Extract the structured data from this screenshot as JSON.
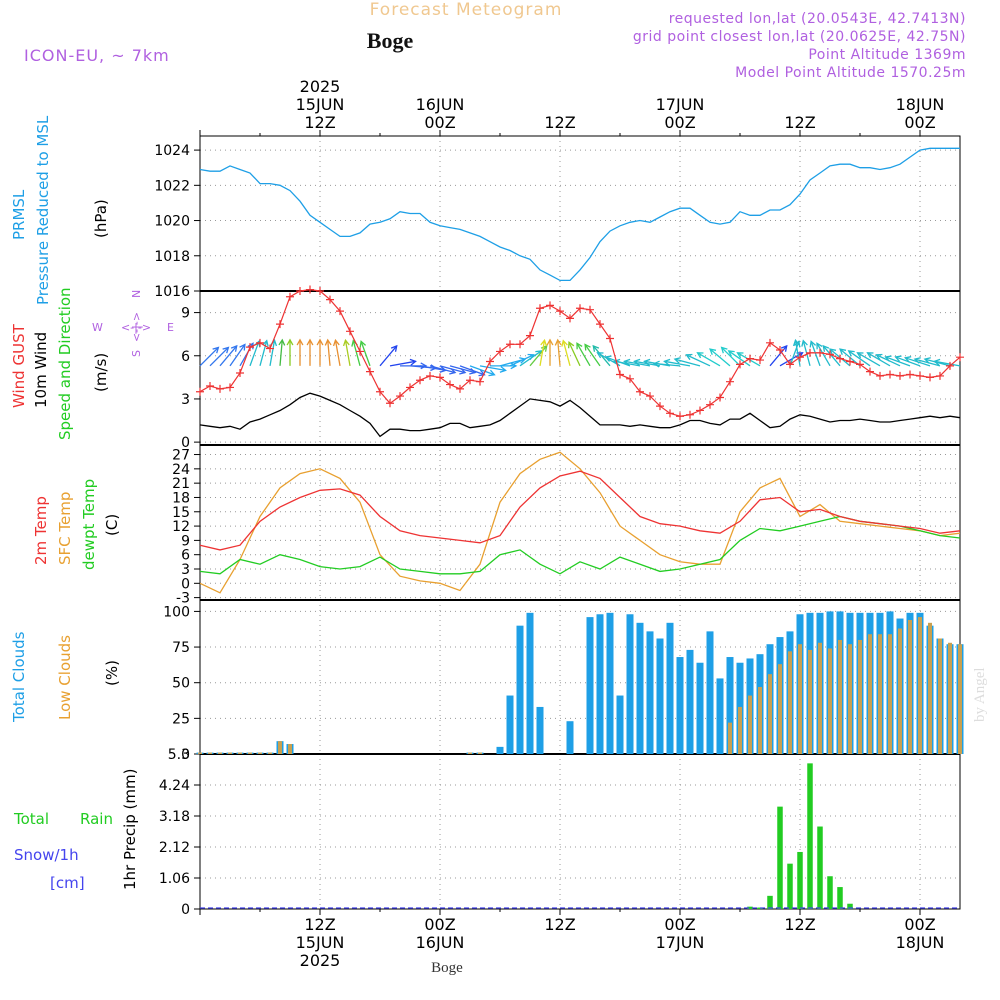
{
  "header": {
    "title": "Forecast Meteogram",
    "location": "Boge",
    "model": "ICON-EU, ~ 7km",
    "requested": "requested lon,lat (20.0543E, 42.7413N)",
    "gridpoint": "grid point closest lon,lat (20.0625E, 42.75N)",
    "altitude": "Point Altitude 1369m",
    "model_altitude": "Model Point Altitude 1570.25m",
    "watermark": "by Angel",
    "footer_location": "Boge"
  },
  "colors": {
    "pressure": "#1e9fe6",
    "gust": "#ee3333",
    "wind": "#000000",
    "temp": "#ee3333",
    "sfc": "#e8a030",
    "dewpt": "#22cc22",
    "total": "#1e9fe6",
    "low": "#c8a050",
    "rain": "#22cc22",
    "snow": "#4444ee",
    "title": "#f0c890",
    "info": "#b060e0",
    "compass": "#b060e0"
  },
  "time_axis": {
    "top_labels": [
      {
        "t": 12,
        "lines": [
          "2025",
          "15JUN",
          "12Z"
        ]
      },
      {
        "t": 24,
        "lines": [
          "16JUN",
          "00Z"
        ]
      },
      {
        "t": 36,
        "lines": [
          "12Z"
        ]
      },
      {
        "t": 48,
        "lines": [
          "17JUN",
          "00Z"
        ]
      },
      {
        "t": 60,
        "lines": [
          "12Z"
        ]
      },
      {
        "t": 72,
        "lines": [
          "18JUN",
          "00Z"
        ]
      }
    ],
    "bottom_labels": [
      {
        "t": 12,
        "lines": [
          "12Z",
          "15JUN",
          "2025"
        ]
      },
      {
        "t": 24,
        "lines": [
          "00Z",
          "16JUN"
        ]
      },
      {
        "t": 36,
        "lines": [
          "12Z"
        ]
      },
      {
        "t": 48,
        "lines": [
          "00Z",
          "17JUN"
        ]
      },
      {
        "t": 60,
        "lines": [
          "12Z"
        ]
      },
      {
        "t": 72,
        "lines": [
          "00Z",
          "18JUN"
        ]
      }
    ]
  },
  "chart_data": [
    {
      "type": "line",
      "panel": "pressure",
      "ylabel_colored": [
        "PRMSL",
        "Pressure Reduced to MSL"
      ],
      "ylabel": "(hPa)",
      "ylim": [
        1016,
        1024.8
      ],
      "yticks": [
        "1016",
        "1018",
        "1020",
        "1022",
        "1024"
      ],
      "x": [
        0,
        1,
        2,
        3,
        4,
        5,
        6,
        7,
        8,
        9,
        10,
        11,
        12,
        13,
        14,
        15,
        16,
        17,
        18,
        19,
        20,
        21,
        22,
        23,
        24,
        25,
        26,
        27,
        28,
        29,
        30,
        31,
        32,
        33,
        34,
        35,
        36,
        37,
        38,
        39,
        40,
        41,
        42,
        43,
        44,
        45,
        46,
        47,
        48,
        49,
        50,
        51,
        52,
        53,
        54,
        55,
        56,
        57,
        58,
        59,
        60,
        61,
        62,
        63,
        64,
        65,
        66,
        67,
        68,
        69,
        70,
        71,
        72,
        73,
        74,
        75,
        76
      ],
      "values": [
        1022.9,
        1022.8,
        1022.8,
        1023.1,
        1022.9,
        1022.7,
        1022.1,
        1022.1,
        1022.0,
        1021.7,
        1021.1,
        1020.3,
        1019.9,
        1019.5,
        1019.1,
        1019.1,
        1019.3,
        1019.8,
        1019.9,
        1020.1,
        1020.5,
        1020.4,
        1020.4,
        1019.9,
        1019.7,
        1019.6,
        1019.5,
        1019.3,
        1019.1,
        1018.8,
        1018.5,
        1018.3,
        1018.0,
        1017.8,
        1017.2,
        1016.9,
        1016.6,
        1016.6,
        1017.2,
        1017.9,
        1018.8,
        1019.4,
        1019.7,
        1019.9,
        1020.0,
        1019.9,
        1020.2,
        1020.5,
        1020.7,
        1020.7,
        1020.3,
        1019.9,
        1019.8,
        1019.9,
        1020.5,
        1020.3,
        1020.3,
        1020.6,
        1020.6,
        1020.9,
        1021.5,
        1022.3,
        1022.7,
        1023.1,
        1023.2,
        1023.2,
        1023.0,
        1023.0,
        1022.9,
        1023.0,
        1023.2,
        1023.6,
        1024.0,
        1024.1,
        1024.1,
        1024.1,
        1024.1
      ]
    },
    {
      "type": "line",
      "panel": "wind",
      "ylabel_colored": [
        "Wind GUST",
        "10m Wind",
        "Speed and Direction"
      ],
      "ylabel": "(m/s)",
      "ylim": [
        -0.2,
        10.5
      ],
      "yticks": [
        "0",
        "3",
        "6",
        "9"
      ],
      "compass": [
        "N",
        "S",
        "W",
        "E"
      ],
      "gust_x": [
        0,
        1,
        2,
        3,
        4,
        5,
        6,
        7,
        8,
        9,
        10,
        11,
        12,
        13,
        14,
        15,
        16,
        17,
        18,
        19,
        20,
        21,
        22,
        23,
        24,
        25,
        26,
        27,
        28,
        29,
        30,
        31,
        32,
        33,
        34,
        35,
        36,
        37,
        38,
        39,
        40,
        41,
        42,
        43,
        44,
        45,
        46,
        47,
        48,
        49,
        50,
        51,
        52,
        53,
        54,
        55,
        56,
        57,
        58,
        59,
        60,
        61,
        62,
        63,
        64,
        65,
        66,
        67,
        68,
        69,
        70,
        71,
        72,
        73,
        74,
        75,
        76
      ],
      "gust": [
        3.5,
        3.9,
        3.7,
        3.8,
        4.8,
        6.6,
        6.9,
        6.5,
        8.2,
        10.1,
        10.5,
        10.6,
        10.5,
        9.9,
        9.1,
        7.7,
        6.3,
        4.9,
        3.5,
        2.7,
        3.2,
        3.8,
        4.3,
        4.6,
        4.5,
        4.0,
        3.7,
        4.3,
        4.2,
        5.6,
        6.3,
        6.8,
        6.8,
        7.4,
        9.3,
        9.5,
        9.1,
        8.6,
        9.3,
        9.2,
        8.2,
        7.2,
        4.7,
        4.4,
        3.5,
        3.2,
        2.5,
        2.0,
        1.8,
        1.9,
        2.2,
        2.6,
        3.1,
        4.2,
        5.4,
        5.8,
        5.7,
        6.9,
        6.4,
        5.4,
        5.9,
        6.2,
        6.2,
        6.1,
        5.8,
        5.6,
        5.4,
        4.9,
        4.6,
        4.7,
        4.6,
        4.7,
        4.6,
        4.5,
        4.6,
        5.3,
        5.9
      ],
      "wind": [
        1.2,
        1.1,
        1.0,
        1.1,
        0.9,
        1.4,
        1.6,
        1.9,
        2.2,
        2.6,
        3.1,
        3.4,
        3.2,
        2.9,
        2.6,
        2.2,
        1.8,
        1.3,
        0.4,
        0.9,
        0.9,
        0.8,
        0.8,
        0.9,
        1.0,
        1.3,
        1.3,
        1.0,
        1.1,
        1.2,
        1.5,
        2.0,
        2.5,
        3.0,
        2.9,
        2.8,
        2.5,
        2.9,
        2.4,
        1.8,
        1.2,
        1.2,
        1.2,
        1.1,
        1.2,
        1.1,
        1.0,
        1.0,
        1.2,
        1.5,
        1.5,
        1.3,
        1.2,
        1.6,
        1.6,
        2.0,
        1.5,
        1.0,
        1.1,
        1.6,
        1.9,
        1.8,
        1.6,
        1.4,
        1.5,
        1.5,
        1.6,
        1.5,
        1.4,
        1.4,
        1.5,
        1.6,
        1.7,
        1.8,
        1.7,
        1.8,
        1.7
      ],
      "dir": [
        225,
        225,
        220,
        215,
        210,
        200,
        195,
        190,
        185,
        180,
        180,
        180,
        180,
        175,
        170,
        170,
        165,
        160,
        220,
        260,
        270,
        275,
        280,
        285,
        285,
        285,
        290,
        290,
        280,
        270,
        255,
        245,
        235,
        220,
        190,
        180,
        175,
        165,
        155,
        150,
        145,
        140,
        120,
        110,
        100,
        100,
        100,
        100,
        95,
        100,
        105,
        115,
        120,
        130,
        135,
        125,
        120,
        220,
        240,
        200,
        170,
        165,
        160,
        150,
        140,
        130,
        130,
        125,
        120,
        120,
        115,
        110,
        110,
        108,
        105,
        105,
        100
      ],
      "wind_color": [
        "#3377ee",
        "#3377ee",
        "#3377ee",
        "#3377ee",
        "#3377ee",
        "#22bbcc",
        "#22bbcc",
        "#22bbcc",
        "#44bb44",
        "#88cc22",
        "#e89030",
        "#e89030",
        "#e89030",
        "#e89030",
        "#e89030",
        "#aacc22",
        "#44cc44",
        "#44cc44",
        "#2244ee",
        "#2244ee",
        "#3366ee",
        "#3366ee",
        "#3366ee",
        "#3366ee",
        "#3366ee",
        "#3366ee",
        "#3366ee",
        "#22aaee",
        "#22aaee",
        "#22aaee",
        "#22aaee",
        "#22aaee",
        "#22bbcc",
        "#66cc44",
        "#dddd22",
        "#e8a030",
        "#e8a030",
        "#dddd22",
        "#88cc22",
        "#44cc44",
        "#44cc44",
        "#22bbaa",
        "#22bbcc",
        "#22bbcc",
        "#22bbcc",
        "#22bbcc",
        "#22bbcc",
        "#22bbcc",
        "#22bbcc",
        "#22bbcc",
        "#22bbcc",
        "#22bbcc",
        "#22cccc",
        "#22cccc",
        "#22cccc",
        "#22cccc",
        "#22cccc",
        "#2244ee",
        "#2244ee",
        "#22bbcc",
        "#22bbcc",
        "#22bbcc",
        "#22bbcc",
        "#22bbcc",
        "#22bbcc",
        "#22bbcc",
        "#22bbcc",
        "#22bbcc",
        "#22bbcc",
        "#22bbcc",
        "#22bbcc",
        "#22bbcc",
        "#22bbcc",
        "#22bbcc",
        "#22bbcc",
        "#22bbcc",
        "#22bbcc"
      ]
    },
    {
      "type": "line",
      "panel": "temperature",
      "ylabel_colored": [
        "2m Temp",
        "SFC Temp",
        "dewpt Temp"
      ],
      "ylabel": "(C)",
      "ylim": [
        -3.5,
        29
      ],
      "yticks": [
        "-3",
        "0",
        "3",
        "6",
        "9",
        "12",
        "15",
        "18",
        "21",
        "24",
        "27"
      ],
      "x": [
        0,
        2,
        4,
        6,
        8,
        10,
        12,
        14,
        16,
        18,
        20,
        22,
        24,
        26,
        28,
        30,
        32,
        34,
        36,
        38,
        40,
        42,
        44,
        46,
        48,
        50,
        52,
        54,
        56,
        58,
        60,
        62,
        64,
        66,
        68,
        70,
        72,
        74,
        76
      ],
      "t2m": [
        8,
        7,
        8,
        13,
        16,
        18,
        19.5,
        19.8,
        18.5,
        14,
        11,
        10,
        9.5,
        9,
        8.5,
        10,
        16,
        20,
        22.5,
        23.5,
        22,
        18,
        14,
        12.5,
        12,
        11,
        10.5,
        13,
        17.5,
        18,
        15,
        15.5,
        14,
        13,
        12.5,
        12,
        11.5,
        10.5,
        11
      ],
      "sfc": [
        0,
        -2,
        5,
        14,
        20,
        23,
        24,
        22,
        17,
        6,
        1.5,
        0.5,
        0,
        -1.5,
        4,
        17,
        23,
        26,
        27.5,
        24,
        19,
        12,
        9,
        6,
        4.5,
        4,
        4,
        15,
        20,
        22,
        14,
        16.5,
        13,
        12.5,
        12,
        11.5,
        11,
        10,
        10.5
      ],
      "dewpt": [
        2.5,
        2,
        5,
        4,
        6,
        5,
        3.5,
        3,
        3.5,
        5.5,
        3,
        2.5,
        2,
        2,
        2.5,
        6,
        7,
        4,
        2,
        4.5,
        3,
        5.5,
        4,
        2.5,
        3,
        4,
        5,
        9,
        11.5,
        11,
        12,
        13,
        14,
        13,
        12.5,
        12,
        11,
        10,
        9.5
      ]
    },
    {
      "type": "bar",
      "panel": "clouds",
      "ylabel_colored": [
        "Total Clouds",
        "Low Clouds"
      ],
      "ylabel": "(%)",
      "ylim": [
        0,
        108
      ],
      "yticks": [
        "0",
        "25",
        "50",
        "75",
        "100"
      ],
      "x": [
        0,
        1,
        2,
        3,
        4,
        5,
        6,
        7,
        8,
        9,
        10,
        11,
        12,
        13,
        14,
        15,
        16,
        17,
        18,
        19,
        20,
        21,
        22,
        23,
        24,
        25,
        26,
        27,
        28,
        29,
        30,
        31,
        32,
        33,
        34,
        35,
        36,
        37,
        38,
        39,
        40,
        41,
        42,
        43,
        44,
        45,
        46,
        47,
        48,
        49,
        50,
        51,
        52,
        53,
        54,
        55,
        56,
        57,
        58,
        59,
        60,
        61,
        62,
        63,
        64,
        65,
        66,
        67,
        68,
        69,
        70,
        71,
        72,
        73,
        74,
        75,
        76
      ],
      "total": [
        1,
        1,
        1,
        1,
        1,
        1,
        1,
        1,
        9,
        7,
        0,
        0,
        0,
        0,
        0,
        0,
        0,
        0,
        0,
        0,
        0,
        0,
        0,
        0,
        0,
        0,
        0,
        1,
        1,
        0,
        5,
        41,
        90,
        99,
        33,
        0,
        0,
        23,
        0,
        96,
        98,
        99,
        41,
        98,
        92,
        86,
        81,
        92,
        68,
        73,
        64,
        86,
        53,
        68,
        64,
        67,
        70,
        77,
        82,
        86,
        98,
        99,
        99,
        100,
        100,
        99,
        99,
        99,
        99,
        100,
        95,
        99,
        99,
        90,
        81,
        77,
        77
      ],
      "low": [
        1,
        1,
        1,
        1,
        1,
        1,
        1,
        1,
        9,
        7,
        0,
        0,
        0,
        0,
        0,
        0,
        0,
        0,
        0,
        0,
        0,
        0,
        0,
        0,
        0,
        0,
        0,
        1,
        1,
        0,
        0,
        0,
        0,
        0,
        0,
        0,
        0,
        0,
        0,
        0,
        0,
        0,
        0,
        0,
        0,
        0,
        0,
        0,
        0,
        0,
        0,
        0,
        0,
        22,
        33,
        41,
        47,
        56,
        63,
        72,
        77,
        73,
        78,
        74,
        80,
        77,
        80,
        84,
        84,
        84,
        88,
        94,
        96,
        92,
        81,
        78,
        77
      ]
    },
    {
      "type": "bar",
      "panel": "precip",
      "ylabel_colored": [
        "Total",
        "Rain",
        "Snow/1h",
        "[cm]"
      ],
      "ylabel": "1hr Precip (mm)",
      "ylim": [
        0,
        5.3
      ],
      "yticks": [
        "0",
        "1.06",
        "2.12",
        "3.18",
        "4.24",
        "5.3"
      ],
      "x": [
        55,
        56,
        57,
        58,
        59,
        60,
        61,
        62,
        63,
        64,
        65
      ],
      "rain": [
        0.08,
        0.05,
        0.45,
        3.5,
        1.55,
        1.95,
        4.98,
        2.82,
        1.12,
        0.75,
        0.18
      ]
    }
  ]
}
